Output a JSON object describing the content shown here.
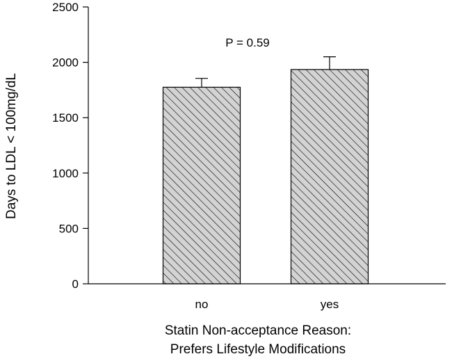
{
  "chart_data": {
    "type": "bar",
    "categories": [
      "no",
      "yes"
    ],
    "values": [
      1775,
      1935
    ],
    "errors": [
      80,
      115
    ],
    "annotation": "P = 0.59",
    "xlabel_lines": [
      "Statin Non-acceptance Reason:",
      "Prefers Lifestyle Modifications"
    ],
    "ylabel": "Days to LDL < 100mg/dL",
    "ylim": [
      0,
      2500
    ],
    "yticks": [
      0,
      500,
      1000,
      1500,
      2000,
      2500
    ],
    "grid": false,
    "bar_fill": "#d3d3d3",
    "hatch_color": "#000000",
    "axis_color": "#000000"
  }
}
